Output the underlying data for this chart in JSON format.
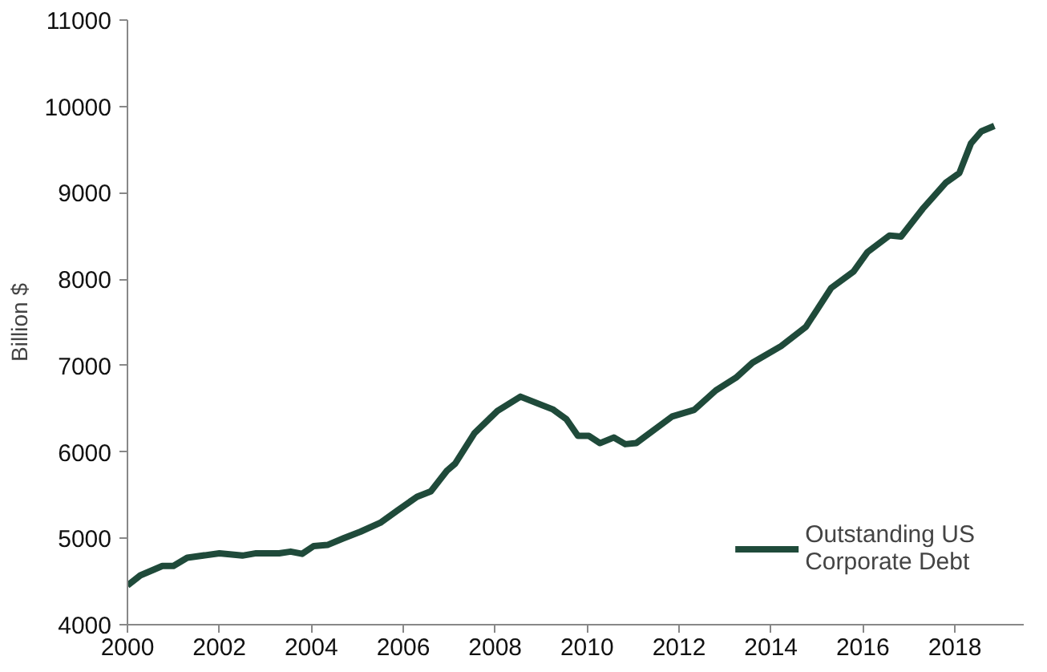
{
  "chart_data": {
    "type": "line",
    "ylabel": "Billion $",
    "x": [
      2000.0,
      2000.28,
      2000.76,
      2001.0,
      2001.3,
      2002.0,
      2002.5,
      2002.8,
      2003.3,
      2003.55,
      2003.8,
      2004.05,
      2004.35,
      2004.7,
      2005.07,
      2005.5,
      2005.87,
      2006.3,
      2006.6,
      2006.95,
      2007.13,
      2007.55,
      2008.05,
      2008.55,
      2009.25,
      2009.55,
      2009.8,
      2010.04,
      2010.28,
      2010.58,
      2010.83,
      2011.07,
      2011.85,
      2012.33,
      2012.8,
      2013.24,
      2013.6,
      2014.22,
      2014.76,
      2015.31,
      2015.8,
      2016.1,
      2016.58,
      2016.83,
      2017.3,
      2017.8,
      2018.1,
      2018.35,
      2018.58,
      2018.86
    ],
    "series": [
      {
        "name": "Outstanding US\nCorporate Debt",
        "color": "#1f4a3a",
        "values": [
          4455,
          4571,
          4680,
          4680,
          4775,
          4827,
          4800,
          4827,
          4827,
          4846,
          4820,
          4910,
          4923,
          5000,
          5077,
          5180,
          5321,
          5481,
          5544,
          5783,
          5865,
          6217,
          6475,
          6640,
          6494,
          6379,
          6186,
          6186,
          6102,
          6167,
          6090,
          6102,
          6410,
          6487,
          6712,
          6860,
          7033,
          7225,
          7448,
          7898,
          8090,
          8313,
          8506,
          8494,
          8814,
          9115,
          9230,
          9571,
          9712,
          9775
        ]
      }
    ],
    "xlim": [
      2000,
      2019.5
    ],
    "xticks": [
      2000,
      2002,
      2004,
      2006,
      2008,
      2010,
      2012,
      2014,
      2016,
      2018
    ],
    "ylim": [
      4000,
      11000
    ],
    "yticks": [
      4000,
      5000,
      6000,
      7000,
      8000,
      9000,
      10000,
      11000
    ],
    "grid": false,
    "legend": "bottom right",
    "marker": "none",
    "line_style": "solid"
  }
}
